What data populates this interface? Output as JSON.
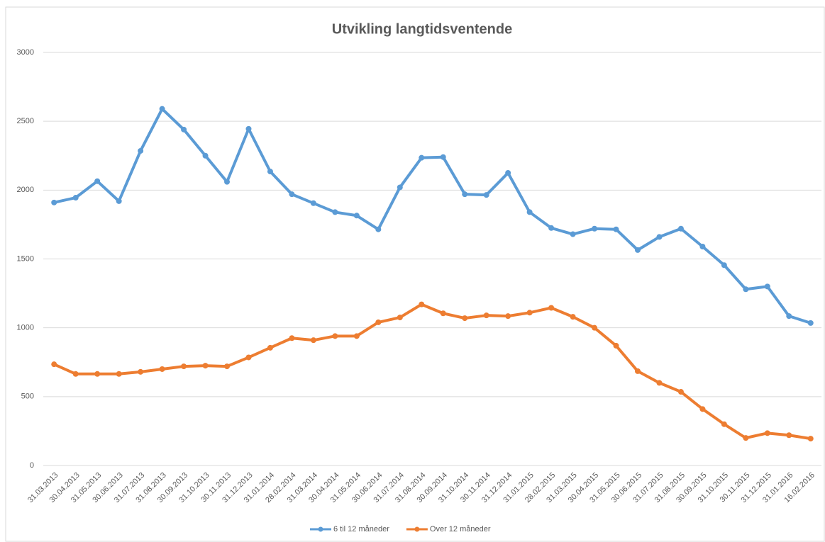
{
  "chart_data": {
    "type": "line",
    "title": "Utvikling langtidsventende",
    "categories": [
      "31.03.2013",
      "30.04.2013",
      "31.05.2013",
      "30.06.2013",
      "31.07.2013",
      "31.08.2013",
      "30.09.2013",
      "31.10.2013",
      "30.11.2013",
      "31.12.2013",
      "31.01.2014",
      "28.02.2014",
      "31.03.2014",
      "30.04.2014",
      "31.05.2014",
      "30.06.2014",
      "31.07.2014",
      "31.08.2014",
      "30.09.2014",
      "31.10.2014",
      "30.11.2014",
      "31.12.2014",
      "31.01.2015",
      "28.02.2015",
      "31.03.2015",
      "30.04.2015",
      "31.05.2015",
      "30.06.2015",
      "31.07.2015",
      "31.08.2015",
      "30.09.2015",
      "31.10.2015",
      "30.11.2015",
      "31.12.2015",
      "31.01.2016",
      "16.02.2016"
    ],
    "series": [
      {
        "name": "6 til 12 måneder",
        "color": "#5b9bd5",
        "values": [
          1910,
          1945,
          2065,
          1920,
          2285,
          2590,
          2440,
          2250,
          2060,
          2445,
          2135,
          1970,
          1905,
          1840,
          1815,
          1715,
          2020,
          2235,
          2240,
          1970,
          1965,
          2125,
          1840,
          1725,
          1680,
          1720,
          1715,
          1565,
          1660,
          1720,
          1590,
          1455,
          1280,
          1300,
          1085,
          1035
        ]
      },
      {
        "name": "Over 12 måneder",
        "color": "#ed7d31",
        "values": [
          735,
          665,
          665,
          665,
          680,
          700,
          720,
          725,
          720,
          785,
          855,
          925,
          910,
          940,
          940,
          1040,
          1075,
          1170,
          1105,
          1070,
          1090,
          1085,
          1110,
          1145,
          1080,
          1000,
          870,
          685,
          600,
          535,
          410,
          300,
          200,
          235,
          220,
          195
        ]
      }
    ],
    "ylim": [
      0,
      3000
    ],
    "yticks": [
      0,
      500,
      1000,
      1500,
      2000,
      2500,
      3000
    ],
    "grid": true,
    "legend": "bottom"
  }
}
